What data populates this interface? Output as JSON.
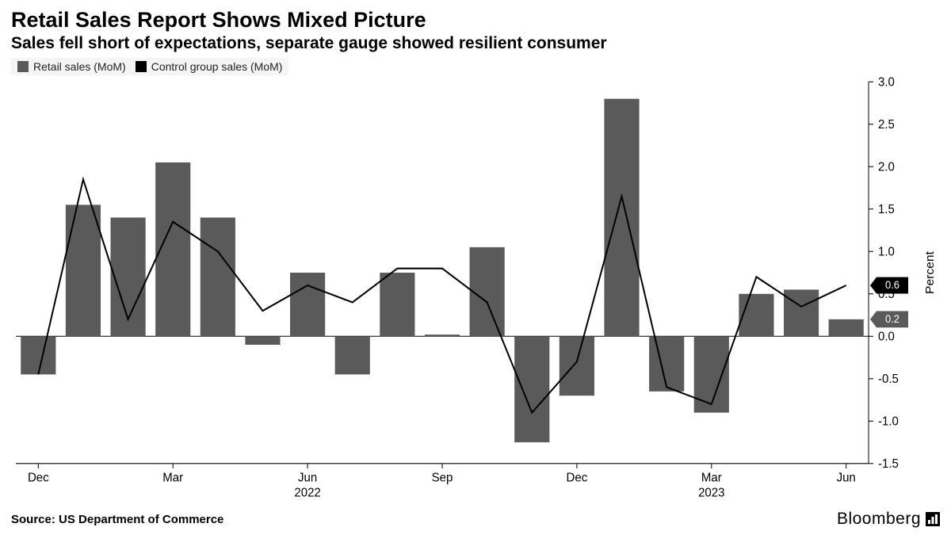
{
  "title": "Retail Sales Report Shows Mixed Picture",
  "subtitle": "Sales fell short of expectations, separate gauge showed resilient consumer",
  "source": "Source: US Department of Commerce",
  "brand": "Bloomberg",
  "legend": {
    "series1": {
      "label": "Retail sales (MoM)",
      "color": "#5a5a5a"
    },
    "series2": {
      "label": "Control group sales (MoM)",
      "color": "#000000"
    }
  },
  "chart": {
    "type": "bar-line-combo",
    "background": "#ffffff",
    "y_axis": {
      "title": "Percent",
      "min": -1.5,
      "max": 3.0,
      "tick_step": 0.5,
      "ticks": [
        -1.5,
        -1.0,
        -0.5,
        0.0,
        0.5,
        1.0,
        1.5,
        2.0,
        2.5,
        3.0
      ],
      "tick_color": "#000000",
      "axis_color": "#000000"
    },
    "x_axis": {
      "categories": [
        "Dec",
        "Jan",
        "Feb",
        "Mar",
        "Apr",
        "May",
        "Jun",
        "Jul",
        "Aug",
        "Sep",
        "Oct",
        "Nov",
        "Dec",
        "Jan",
        "Feb",
        "Mar",
        "Apr",
        "May",
        "Jun"
      ],
      "tick_labels": [
        {
          "i": 0,
          "label": "Dec"
        },
        {
          "i": 3,
          "label": "Mar"
        },
        {
          "i": 6,
          "label": "Jun",
          "sub": "2022"
        },
        {
          "i": 9,
          "label": "Sep"
        },
        {
          "i": 12,
          "label": "Dec"
        },
        {
          "i": 15,
          "label": "Mar",
          "sub": "2023"
        },
        {
          "i": 18,
          "label": "Jun"
        }
      ],
      "axis_color": "#000000"
    },
    "bars": {
      "color": "#5a5a5a",
      "width_ratio": 0.78,
      "values": [
        -0.45,
        1.55,
        1.4,
        2.05,
        1.4,
        -0.1,
        0.75,
        -0.45,
        0.75,
        0.02,
        1.05,
        -1.25,
        -0.7,
        2.8,
        -0.65,
        -0.9,
        0.5,
        0.55,
        0.2
      ]
    },
    "line": {
      "color": "#000000",
      "width": 2,
      "values": [
        -0.45,
        1.85,
        0.2,
        1.35,
        1.0,
        0.3,
        0.6,
        0.4,
        0.8,
        0.8,
        0.4,
        -0.9,
        -0.3,
        1.65,
        -0.6,
        -0.8,
        0.7,
        0.35,
        0.6
      ]
    },
    "flags": [
      {
        "text": "0.6",
        "value": 0.6,
        "bg": "#000000"
      },
      {
        "text": "0.2",
        "value": 0.2,
        "bg": "#5a5a5a"
      }
    ]
  }
}
